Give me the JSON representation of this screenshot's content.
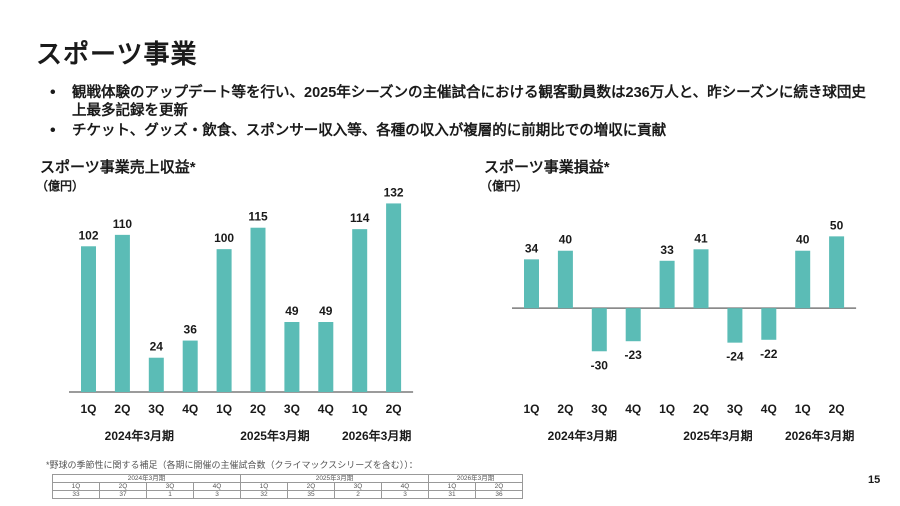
{
  "page": {
    "title": "スポーツ事業",
    "bullets": [
      "観戦体験のアップデート等を行い、2025年シーズンの主催試合における観客動員数は236万人と、昨シーズンに続き球団史上最多記録を更新",
      "チケット、グッズ・飲食、スポンサー収入等、各種の収入が複層的に前期比での増収に貢献"
    ],
    "page_number": "15"
  },
  "colors": {
    "bar": "#5bbcb6",
    "axis": "#7a7a7a",
    "text": "#1a1a1a"
  },
  "chart_data": [
    {
      "type": "bar",
      "title": "スポーツ事業売上収益*",
      "unit": "（億円）",
      "categories": [
        "1Q",
        "2Q",
        "3Q",
        "4Q",
        "1Q",
        "2Q",
        "3Q",
        "4Q",
        "1Q",
        "2Q"
      ],
      "groups": [
        "2024年3月期",
        "2025年3月期",
        "2026年3月期"
      ],
      "group_sizes": [
        4,
        4,
        2
      ],
      "values": [
        102,
        110,
        24,
        36,
        100,
        115,
        49,
        49,
        114,
        132
      ],
      "ylim": [
        0,
        140
      ]
    },
    {
      "type": "bar",
      "title": "スポーツ事業損益*",
      "unit": "（億円）",
      "categories": [
        "1Q",
        "2Q",
        "3Q",
        "4Q",
        "1Q",
        "2Q",
        "3Q",
        "4Q",
        "1Q",
        "2Q"
      ],
      "groups": [
        "2024年3月期",
        "2025年3月期",
        "2026年3月期"
      ],
      "group_sizes": [
        4,
        4,
        2
      ],
      "values": [
        34,
        40,
        -30,
        -23,
        33,
        41,
        -24,
        -22,
        40,
        50
      ],
      "ylim": [
        -50,
        60
      ]
    }
  ],
  "footnote": {
    "text": "*野球の季節性に関する補足（各期に開催の主催試合数（クライマックスシリーズを含む））：",
    "periods": [
      "2024年3月期",
      "2025年3月期",
      "2026年3月期"
    ],
    "quarters": [
      "1Q",
      "2Q",
      "3Q",
      "4Q",
      "1Q",
      "2Q",
      "3Q",
      "4Q",
      "1Q",
      "2Q"
    ],
    "games": [
      "33",
      "37",
      "1",
      "3",
      "32",
      "35",
      "2",
      "3",
      "31",
      "36"
    ]
  }
}
